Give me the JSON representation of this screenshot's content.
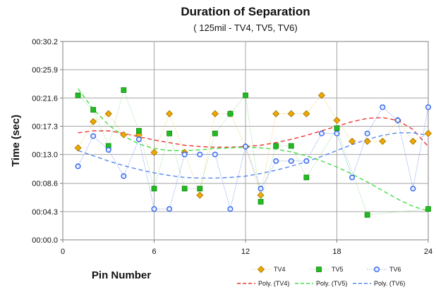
{
  "chart_data": {
    "type": "scatter",
    "title": "Duration of Separation",
    "subtitle": "( 125mil - TV4, TV5, TV6)",
    "xlabel": "Pin Number",
    "ylabel": "Time (sec)",
    "xlim": [
      0,
      24
    ],
    "ylim": [
      0,
      30.2
    ],
    "x_ticks": [
      0,
      6,
      12,
      18,
      24
    ],
    "x_tick_labels": [
      "0",
      "6",
      "12",
      "18",
      "24"
    ],
    "y_ticks": [
      0,
      4.3,
      8.6,
      13.0,
      17.3,
      21.6,
      25.9,
      30.2
    ],
    "y_tick_labels": [
      "00:00.0",
      "00:04.3",
      "00:08.6",
      "00:13.0",
      "00:17.3",
      "00:21.6",
      "00:25.9",
      "00:30.2"
    ],
    "grid": true,
    "legend_position": "bottom-right",
    "series": [
      {
        "name": "TV4",
        "color": "#f0a800",
        "marker": "diamond",
        "x": [
          1,
          2,
          3,
          4,
          5,
          6,
          7,
          8,
          9,
          10,
          11,
          12,
          13,
          14,
          15,
          16,
          17,
          18,
          19,
          20,
          21,
          22,
          23,
          24
        ],
        "y": [
          14.0,
          18.0,
          19.2,
          16.0,
          16.0,
          13.3,
          19.2,
          13.3,
          6.8,
          19.2,
          19.2,
          14.2,
          6.8,
          19.2,
          19.2,
          19.2,
          22.0,
          18.2,
          15.0,
          15.0,
          15.0,
          18.2,
          15.0,
          16.2
        ]
      },
      {
        "name": "TV5",
        "color": "#22bb22",
        "marker": "square",
        "x": [
          1,
          2,
          3,
          4,
          5,
          6,
          7,
          8,
          9,
          10,
          11,
          12,
          13,
          14,
          15,
          16,
          18,
          20,
          24
        ],
        "y": [
          22.0,
          19.8,
          14.3,
          22.8,
          16.6,
          7.8,
          16.2,
          7.8,
          7.8,
          16.2,
          19.2,
          22.0,
          5.8,
          14.3,
          14.3,
          9.5,
          17.0,
          3.8,
          4.7
        ]
      },
      {
        "name": "TV6",
        "color": "#3366ee",
        "marker": "circle",
        "x": [
          1,
          2,
          3,
          4,
          5,
          6,
          7,
          8,
          9,
          10,
          11,
          12,
          13,
          14,
          15,
          16,
          17,
          18,
          19,
          20,
          21,
          22,
          23,
          24
        ],
        "y": [
          11.2,
          15.8,
          13.7,
          9.7,
          15.3,
          4.7,
          4.7,
          13.0,
          13.0,
          13.0,
          4.7,
          14.2,
          7.8,
          12.0,
          12.0,
          12.0,
          16.2,
          16.2,
          9.5,
          16.2,
          20.2,
          18.2,
          7.8,
          20.2
        ]
      }
    ],
    "trendlines": [
      {
        "name": "Poly. (TV4)",
        "color": "#ee3333",
        "x": [
          1,
          2,
          3,
          4,
          5,
          6,
          7,
          8,
          9,
          10,
          11,
          12,
          13,
          14,
          15,
          16,
          17,
          18,
          19,
          20,
          21,
          22,
          23,
          24
        ],
        "y": [
          16.3,
          16.6,
          16.6,
          16.2,
          15.7,
          15.2,
          14.8,
          14.4,
          14.2,
          14.1,
          14.1,
          14.2,
          14.4,
          14.8,
          15.3,
          15.9,
          16.6,
          17.3,
          18.0,
          18.5,
          18.6,
          18.2,
          16.8,
          14.2
        ]
      },
      {
        "name": "Poly. (TV5)",
        "color": "#44dd44",
        "x": [
          1,
          2,
          3,
          4,
          5,
          6,
          7,
          8,
          9,
          10,
          11,
          12,
          13,
          14,
          15,
          16,
          17,
          18,
          19,
          20,
          21,
          22,
          23,
          24
        ],
        "y": [
          23.0,
          19.9,
          17.5,
          15.8,
          14.6,
          13.9,
          13.6,
          13.6,
          13.7,
          13.9,
          14.0,
          14.1,
          14.0,
          13.8,
          13.4,
          12.8,
          12.0,
          11.1,
          10.0,
          8.8,
          7.5,
          6.2,
          5.1,
          4.4
        ]
      },
      {
        "name": "Poly. (TV6)",
        "color": "#5588ee",
        "x": [
          1,
          2,
          3,
          4,
          5,
          6,
          7,
          8,
          9,
          10,
          11,
          12,
          13,
          14,
          15,
          16,
          17,
          18,
          19,
          20,
          21,
          22,
          23,
          24
        ],
        "y": [
          13.6,
          12.8,
          12.0,
          11.3,
          10.7,
          10.2,
          9.8,
          9.5,
          9.4,
          9.4,
          9.5,
          9.7,
          10.1,
          10.6,
          11.2,
          11.9,
          12.7,
          13.6,
          14.5,
          15.3,
          15.9,
          16.3,
          16.3,
          15.9
        ]
      }
    ]
  }
}
